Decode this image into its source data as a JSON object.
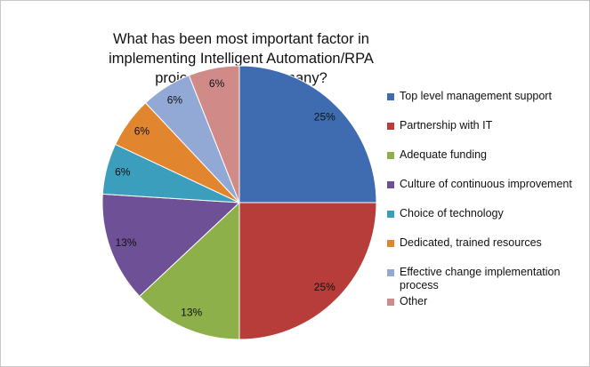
{
  "chart_data": {
    "type": "pie",
    "title": "What has been most important factor in implementing Intelligent Automation/RPA projects at your company?",
    "categories": [
      "Top level management support",
      "Partnership with IT",
      "Adequate funding",
      "Culture of continuous improvement",
      "Choice of technology",
      "Dedicated, trained resources",
      "Effective change implementation process",
      "Other"
    ],
    "values": [
      25,
      25,
      13,
      13,
      6,
      6,
      6,
      6
    ],
    "value_labels": [
      "25%",
      "25%",
      "13%",
      "13%",
      "6%",
      "6%",
      "6%",
      "6%"
    ],
    "colors": [
      "#3f6bb0",
      "#b73d3a",
      "#8db04a",
      "#6e5096",
      "#3b9ebd",
      "#e1862f",
      "#92a9d6",
      "#d08b89"
    ],
    "legend": "right"
  }
}
